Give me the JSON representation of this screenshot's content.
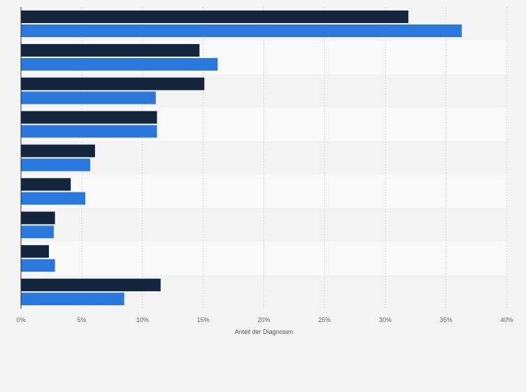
{
  "chart_data": {
    "type": "bar",
    "orientation": "horizontal",
    "categories": [
      "",
      "",
      "",
      "",
      "",
      "",
      "",
      "",
      ""
    ],
    "series": [
      {
        "values": [
          31.9,
          14.7,
          15.1,
          11.2,
          6.1,
          4.1,
          2.8,
          2.3,
          11.5
        ]
      },
      {
        "values": [
          36.3,
          16.2,
          11.1,
          11.2,
          5.7,
          5.3,
          2.7,
          2.8,
          8.5
        ]
      }
    ],
    "xlabel": "Anteil der Diagnosen",
    "xlim": [
      0,
      40
    ],
    "x_ticks": [
      "0%",
      "5%",
      "10%",
      "15%",
      "20%",
      "25%",
      "30%",
      "35%",
      "40%"
    ],
    "grid": true,
    "legend": "none"
  },
  "colors": {
    "series": [
      "#14253e",
      "#2a78dc"
    ],
    "band_dark": "#f3f3f3",
    "band_light": "#f9f9f9",
    "grid": "#dcdcdc"
  }
}
